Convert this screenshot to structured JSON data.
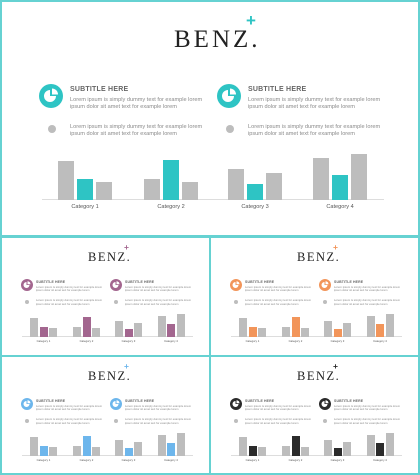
{
  "colors": {
    "frame": "#66d2d2",
    "gray_bar": "#bdbdbd",
    "dot": "#bdbdbd"
  },
  "slides": [
    {
      "id": "main",
      "accent": "#2ec4c4",
      "logo": "BENZ.",
      "plus": "+",
      "subtitle_left": "SUBTITLE HERE",
      "subtitle_right": "SUBTITLE HERE",
      "body_left": [
        "Lorem ipsum is simply dummy text for example lorem",
        "ipsum dolor sit amet text for example lorem"
      ],
      "body_right": [
        "Lorem ipsum is simply dummy text for example lorem",
        "ipsum dolor sit amet text for example lorem"
      ],
      "body2_left": [
        "Lorem ipsum is simply dummy text for example lorem",
        "ipsum dolor sit amet text for example lorem"
      ],
      "body2_right": [
        "Lorem ipsum is simply dummy text for example lorem",
        "ipsum dolor sit amet text for example lorem"
      ],
      "icon_left": "pie-chart-icon",
      "icon_right": "pie-chart-icon"
    },
    {
      "id": "purple",
      "accent": "#a3668f",
      "logo": "BENZ.",
      "plus": "+",
      "subtitle_left": "SUBTITLE HERE",
      "subtitle_right": "SUBTITLE HERE",
      "body_left": [
        "Lorem ipsum is simply dummy text for example lorem",
        "ipsum dolor sit amet text for example lorem"
      ],
      "body_right": [
        "Lorem ipsum is simply dummy text for example lorem",
        "ipsum dolor sit amet text for example lorem"
      ],
      "body2_left": [
        "Lorem ipsum is simply dummy text for example lorem",
        "ipsum dolor sit amet text for example lorem"
      ],
      "body2_right": [
        "Lorem ipsum is simply dummy text for example lorem",
        "ipsum dolor sit amet text for example lorem"
      ],
      "icon_left": "pie-chart-icon",
      "icon_right": "pie-chart-icon"
    },
    {
      "id": "orange",
      "accent": "#f2955a",
      "logo": "BENZ.",
      "plus": "+",
      "subtitle_left": "SUBTITLE HERE",
      "subtitle_right": "SUBTITLE HERE",
      "body_left": [
        "Lorem ipsum is simply dummy text for example lorem",
        "ipsum dolor sit amet text for example lorem"
      ],
      "body_right": [
        "Lorem ipsum is simply dummy text for example lorem",
        "ipsum dolor sit amet text for example lorem"
      ],
      "body2_left": [
        "Lorem ipsum is simply dummy text for example lorem",
        "ipsum dolor sit amet text for example lorem"
      ],
      "body2_right": [
        "Lorem ipsum is simply dummy text for example lorem",
        "ipsum dolor sit amet text for example lorem"
      ],
      "icon_left": "pie-chart-icon",
      "icon_right": "pie-chart-icon"
    },
    {
      "id": "blue",
      "accent": "#6db6ec",
      "logo": "BENZ.",
      "plus": "+",
      "subtitle_left": "SUBTITLE HERE",
      "subtitle_right": "SUBTITLE HERE",
      "body_left": [
        "Lorem ipsum is simply dummy text for example lorem",
        "ipsum dolor sit amet text for example lorem"
      ],
      "body_right": [
        "Lorem ipsum is simply dummy text for example lorem",
        "ipsum dolor sit amet text for example lorem"
      ],
      "body2_left": [
        "Lorem ipsum is simply dummy text for example lorem",
        "ipsum dolor sit amet text for example lorem"
      ],
      "body2_right": [
        "Lorem ipsum is simply dummy text for example lorem",
        "ipsum dolor sit amet text for example lorem"
      ],
      "icon_left": "pie-chart-icon",
      "icon_right": "pie-chart-icon"
    },
    {
      "id": "black",
      "accent": "#2b2b2b",
      "logo": "BENZ.",
      "plus": "+",
      "subtitle_left": "SUBTITLE HERE",
      "subtitle_right": "SUBTITLE HERE",
      "body_left": [
        "Lorem ipsum is simply dummy text for example lorem",
        "ipsum dolor sit amet text for example lorem"
      ],
      "body_right": [
        "Lorem ipsum is simply dummy text for example lorem",
        "ipsum dolor sit amet text for example lorem"
      ],
      "body2_left": [
        "Lorem ipsum is simply dummy text for example lorem",
        "ipsum dolor sit amet text for example lorem"
      ],
      "body2_right": [
        "Lorem ipsum is simply dummy text for example lorem",
        "ipsum dolor sit amet text for example lorem"
      ],
      "icon_left": "pie-chart-icon",
      "icon_right": "pie-chart-icon"
    }
  ],
  "chart_data": {
    "type": "bar",
    "categories": [
      "Category 1",
      "Category 2",
      "Category 3",
      "Category 4"
    ],
    "series": [
      {
        "values": [
          37,
          20,
          30,
          40
        ]
      },
      {
        "values": [
          20,
          38,
          15,
          24
        ]
      },
      {
        "values": [
          17,
          17,
          26,
          44
        ]
      }
    ],
    "highlight_series": 1,
    "ylim": [
      0,
      46
    ],
    "grid": false
  }
}
